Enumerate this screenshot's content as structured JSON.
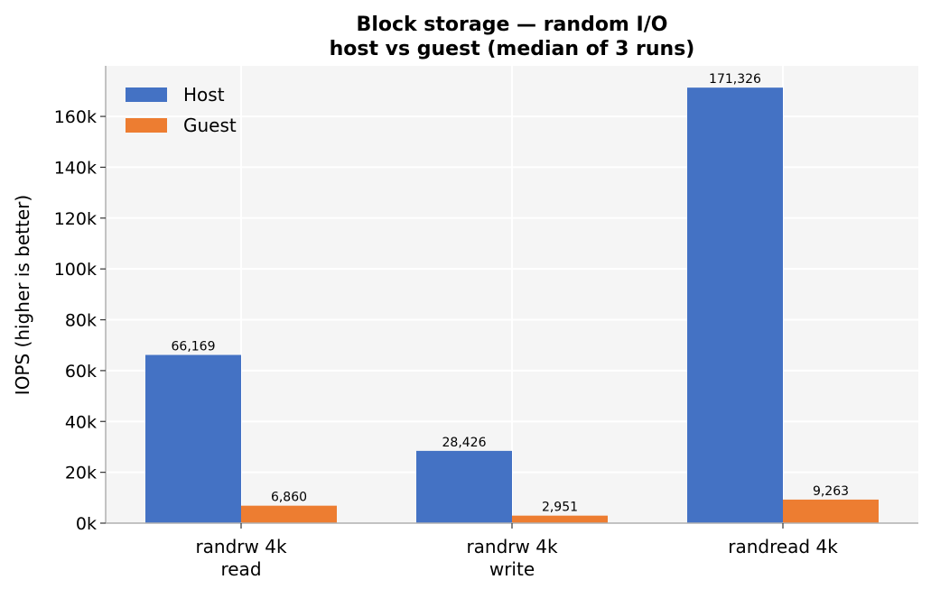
{
  "chart_data": {
    "type": "bar",
    "title_lines": [
      "Block storage — random I/O",
      "host vs guest  (median of 3 runs)"
    ],
    "xlabel": "",
    "ylabel": "IOPS  (higher is better)",
    "categories": [
      [
        "randrw 4k",
        "read"
      ],
      [
        "randrw 4k",
        "write"
      ],
      [
        "randread 4k"
      ]
    ],
    "series": [
      {
        "name": "Host",
        "color": "#4472c4",
        "values": [
          66169,
          28426,
          171326
        ],
        "labels": [
          "66,169",
          "28,426",
          "171,326"
        ]
      },
      {
        "name": "Guest",
        "color": "#ed7d31",
        "values": [
          6860,
          2951,
          9263
        ],
        "labels": [
          "6,860",
          "2,951",
          "9,263"
        ]
      }
    ],
    "yticks": [
      0,
      20000,
      40000,
      60000,
      80000,
      100000,
      120000,
      140000,
      160000
    ],
    "ytick_labels": [
      "0k",
      "20k",
      "40k",
      "60k",
      "80k",
      "100k",
      "120k",
      "140k",
      "160k"
    ],
    "ylim": [
      0,
      179892
    ],
    "grid": true,
    "legend_position": "top-left",
    "plot_background": "#f5f5f5",
    "grid_color": "#ffffff"
  }
}
